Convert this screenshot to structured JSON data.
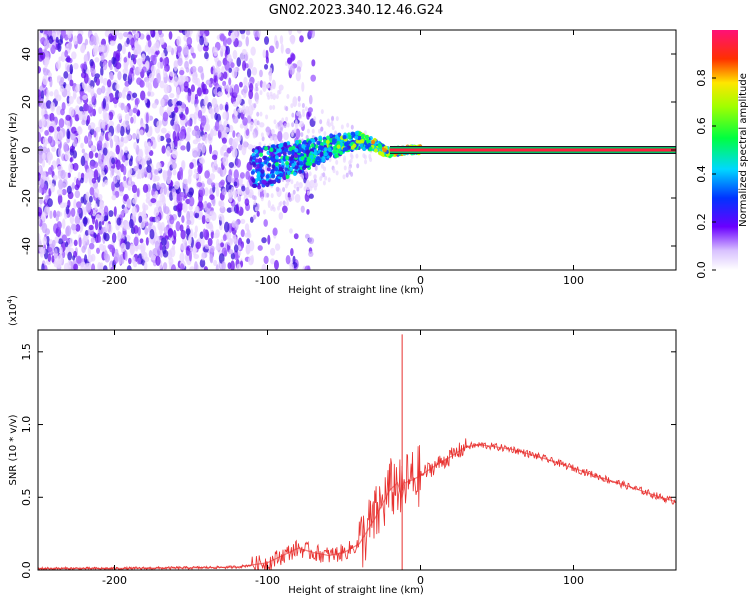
{
  "title": "GN02.2023.340.12.46.G24",
  "chart_data": [
    {
      "type": "heatmap",
      "xlabel": "Height of straight line (km)",
      "ylabel": "Frequency (Hz)",
      "xlim": [
        -250,
        167
      ],
      "ylim": [
        -50,
        50
      ],
      "xticks": [
        -200,
        -100,
        0,
        100
      ],
      "yticks": [
        -40,
        -20,
        0,
        20,
        40
      ],
      "colorbar": {
        "label": "Normalized spectral amplitude",
        "range": [
          0.0,
          1.0
        ],
        "ticks": [
          "0.0",
          "0.2",
          "0.4",
          "0.6",
          "0.8"
        ],
        "colormap": "white-purple-blue-cyan-green-yellow-red-magenta"
      },
      "features": {
        "noise_region_x": [
          -250,
          -110
        ],
        "emergence_x": -110,
        "signal_path": {
          "x": [
            -110,
            -95,
            -80,
            -65,
            -50,
            -40,
            -30,
            -25,
            -20,
            -10,
            0,
            167
          ],
          "frequency": [
            -8,
            -6,
            -3,
            0,
            3,
            4,
            2,
            0,
            -1,
            0,
            0,
            0
          ]
        },
        "steady_band_x": [
          0,
          167
        ],
        "steady_frequency": 0
      }
    },
    {
      "type": "line",
      "xlabel": "Height of straight line (km)",
      "ylabel": "SNR (10 * v/v)",
      "yscale_label": "(x10",
      "yscale_exponent": "4",
      "xlim": [
        -250,
        167
      ],
      "ylim": [
        0,
        1.65
      ],
      "xticks": [
        -200,
        -100,
        0,
        100
      ],
      "yticks": [
        "0.0",
        "0.5",
        "1.0",
        "1.5"
      ],
      "color": "#e8312f",
      "series": [
        {
          "x": [
            -250,
            -200,
            -150,
            -120,
            -100,
            -90,
            -80,
            -70,
            -60,
            -50,
            -40,
            -30,
            -25,
            -20,
            -15,
            -12,
            -10,
            -5,
            0,
            10,
            20,
            30,
            40,
            60,
            80,
            100,
            120,
            140,
            160,
            167
          ],
          "y": [
            0.01,
            0.01,
            0.015,
            0.02,
            0.05,
            0.1,
            0.15,
            0.12,
            0.1,
            0.12,
            0.18,
            0.35,
            0.45,
            0.55,
            0.6,
            0.5,
            0.6,
            0.62,
            0.65,
            0.72,
            0.78,
            0.85,
            0.86,
            0.83,
            0.77,
            0.7,
            0.63,
            0.56,
            0.49,
            0.47
          ]
        }
      ],
      "spike": {
        "x": -12,
        "y": 1.62
      }
    }
  ]
}
